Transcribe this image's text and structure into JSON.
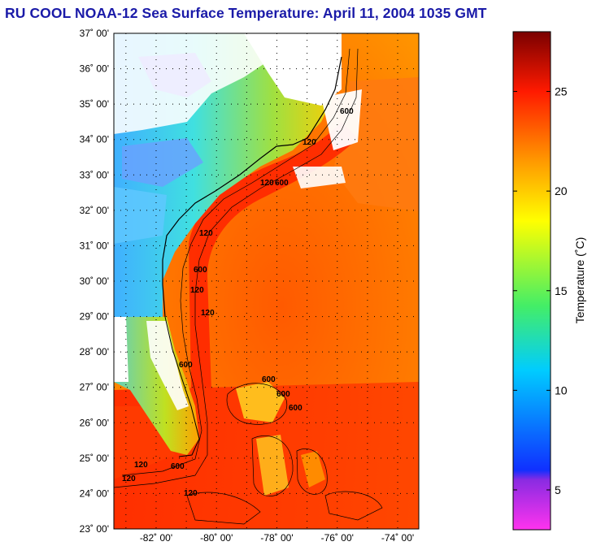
{
  "title": "RU COOL  NOAA-12  Sea Surface Temperature:  April 11, 2004 1035 GMT",
  "map": {
    "lat_labels": [
      "37˚ 00'",
      "36˚ 00'",
      "35˚ 00'",
      "34˚ 00'",
      "33˚ 00'",
      "32˚ 00'",
      "31˚ 00'",
      "30˚ 00'",
      "29˚ 00'",
      "28˚ 00'",
      "27˚ 00'",
      "26˚ 00'",
      "25˚ 00'",
      "24˚ 00'",
      "23˚ 00'"
    ],
    "lon_labels": [
      "-82˚ 00'",
      "-80˚ 00'",
      "-78˚ 00'",
      "-76˚ 00'",
      "-74˚ 00'"
    ],
    "lat_range": [
      23,
      37
    ],
    "lon_range": [
      -83.4,
      -73.3
    ],
    "contour_labels": [
      "120",
      "600",
      "120",
      "600",
      "120",
      "600",
      "120",
      "600",
      "120",
      "600",
      "600",
      "600",
      "120",
      "120",
      "600",
      "120"
    ]
  },
  "colorbar": {
    "label": "Temperature (˚C)",
    "ticks": [
      5,
      10,
      15,
      20,
      25
    ],
    "range": [
      3,
      28
    ],
    "colors": {
      "low": "#ff33ee",
      "purple": "#8a2be2",
      "blue": "#1030ff",
      "cyan": "#00ccff",
      "green": "#44ee66",
      "yellow": "#ffff00",
      "orange": "#ff9900",
      "red": "#ff1a00",
      "dark": "#7a0000"
    }
  }
}
